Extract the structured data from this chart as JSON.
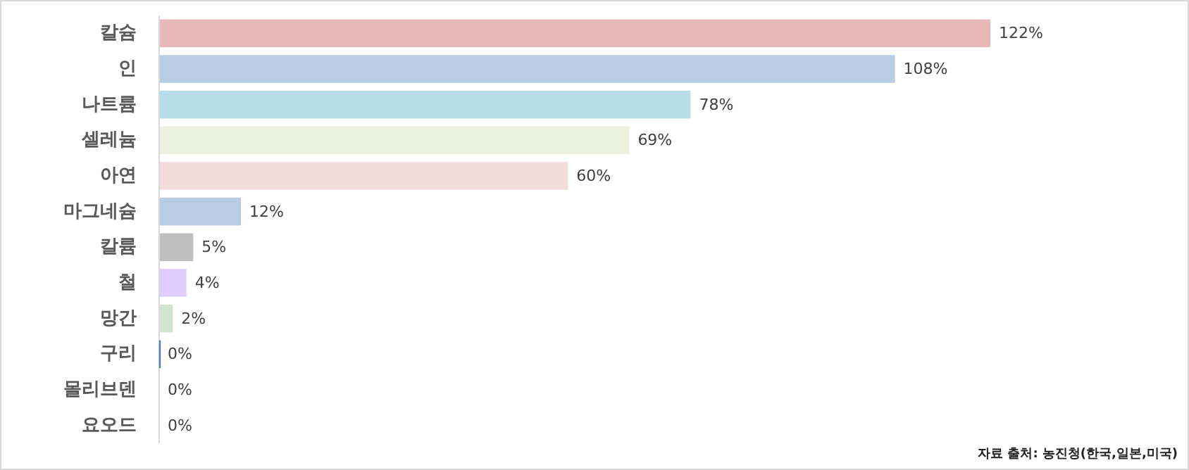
{
  "chart_data": {
    "type": "bar",
    "orientation": "horizontal",
    "categories": [
      "칼슘",
      "인",
      "나트륨",
      "셀레늄",
      "아연",
      "마그네슘",
      "칼륨",
      "철",
      "망간",
      "구리",
      "몰리브덴",
      "요오드"
    ],
    "values": [
      122,
      108,
      78,
      69,
      60,
      12,
      5,
      4,
      2,
      0,
      0,
      0
    ],
    "value_labels": [
      "122%",
      "108%",
      "78%",
      "69%",
      "60%",
      "12%",
      "5%",
      "4%",
      "2%",
      "0%",
      "0%",
      "0%"
    ],
    "colors": [
      "#e6b8b7",
      "#b8cce4",
      "#b7dde8",
      "#ebf1de",
      "#f2dcdb",
      "#b8cce4",
      "#bfbfbf",
      "#e0ccff",
      "#d0e4d0",
      "#4f81bd",
      "#ffffff",
      "#ffffff"
    ],
    "annotations": [
      "자료 출처: 농진청(한국,일본,미국)"
    ]
  }
}
